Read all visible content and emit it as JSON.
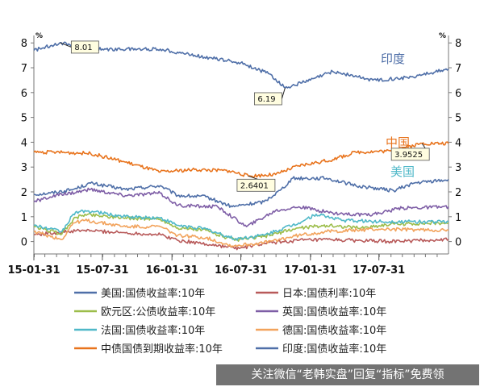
{
  "watermark": {
    "text": "关注微信“老韩实盘”回复“指标”免费领"
  },
  "chart_data": {
    "type": "line",
    "unit_left": "%",
    "unit_right": "%",
    "ylim": [
      -0.5,
      8.3
    ],
    "yticks": [
      0,
      1,
      2,
      3,
      4,
      5,
      6,
      7,
      8
    ],
    "xlim": [
      "2015-01-31",
      "2018-01-31"
    ],
    "xticks": [
      "15-01-31",
      "15-07-31",
      "16-01-31",
      "16-07-31",
      "17-01-31",
      "17-07-31"
    ],
    "xtick_dates": [
      "2015-01-31",
      "2015-07-31",
      "2016-01-31",
      "2016-07-31",
      "2017-01-31",
      "2017-07-31"
    ],
    "grid": false,
    "legend_position": "bottom",
    "series": [
      {
        "name": "美国:国债收益率:10年",
        "color": "#4f6fa8",
        "points": [
          [
            "2015-01-31",
            1.9
          ],
          [
            "2015-03-15",
            1.95
          ],
          [
            "2015-05-15",
            2.1
          ],
          [
            "2015-06-30",
            2.35
          ],
          [
            "2015-09-30",
            2.1
          ],
          [
            "2015-12-31",
            2.25
          ],
          [
            "2016-02-15",
            1.85
          ],
          [
            "2016-04-30",
            1.8
          ],
          [
            "2016-07-08",
            1.4
          ],
          [
            "2016-09-30",
            1.6
          ],
          [
            "2016-11-15",
            2.1
          ],
          [
            "2016-12-15",
            2.55
          ],
          [
            "2017-03-15",
            2.55
          ],
          [
            "2017-05-31",
            2.25
          ],
          [
            "2017-09-08",
            2.05
          ],
          [
            "2017-10-31",
            2.35
          ],
          [
            "2018-01-31",
            2.5
          ]
        ]
      },
      {
        "name": "日本:国债利率:10年",
        "color": "#b85a5a",
        "points": [
          [
            "2015-01-31",
            0.28
          ],
          [
            "2015-06-15",
            0.45
          ],
          [
            "2015-09-30",
            0.35
          ],
          [
            "2015-12-31",
            0.28
          ],
          [
            "2016-02-15",
            0.05
          ],
          [
            "2016-04-30",
            -0.1
          ],
          [
            "2016-07-27",
            -0.28
          ],
          [
            "2016-09-30",
            -0.08
          ],
          [
            "2016-12-31",
            0.05
          ],
          [
            "2017-03-31",
            0.07
          ],
          [
            "2017-08-31",
            0.0
          ],
          [
            "2018-01-31",
            0.08
          ]
        ]
      },
      {
        "name": "欧元区:公债收益率:10年",
        "color": "#9cbd4a",
        "points": [
          [
            "2015-01-31",
            0.6
          ],
          [
            "2015-04-15",
            0.3
          ],
          [
            "2015-05-15",
            0.9
          ],
          [
            "2015-06-15",
            1.1
          ],
          [
            "2015-09-30",
            0.95
          ],
          [
            "2015-12-31",
            0.9
          ],
          [
            "2016-02-15",
            0.55
          ],
          [
            "2016-04-30",
            0.45
          ],
          [
            "2016-07-15",
            0.05
          ],
          [
            "2016-09-30",
            0.2
          ],
          [
            "2016-12-31",
            0.55
          ],
          [
            "2017-03-15",
            0.65
          ],
          [
            "2017-06-15",
            0.55
          ],
          [
            "2017-08-31",
            0.7
          ],
          [
            "2018-01-31",
            0.75
          ]
        ]
      },
      {
        "name": "英国:国债收益率:10年",
        "color": "#7e5ea6",
        "points": [
          [
            "2015-01-31",
            1.6
          ],
          [
            "2015-03-15",
            1.8
          ],
          [
            "2015-06-30",
            2.1
          ],
          [
            "2015-09-30",
            1.85
          ],
          [
            "2015-12-31",
            1.95
          ],
          [
            "2016-02-15",
            1.45
          ],
          [
            "2016-05-31",
            1.4
          ],
          [
            "2016-08-15",
            0.6
          ],
          [
            "2016-10-31",
            1.25
          ],
          [
            "2016-12-31",
            1.4
          ],
          [
            "2017-03-31",
            1.15
          ],
          [
            "2017-06-30",
            1.05
          ],
          [
            "2017-09-30",
            1.35
          ],
          [
            "2018-01-31",
            1.4
          ]
        ]
      },
      {
        "name": "法国:国债收益率:10年",
        "color": "#4fb8c8",
        "points": [
          [
            "2015-01-31",
            0.65
          ],
          [
            "2015-04-15",
            0.4
          ],
          [
            "2015-05-15",
            1.1
          ],
          [
            "2015-06-15",
            1.25
          ],
          [
            "2015-09-30",
            1.0
          ],
          [
            "2015-12-31",
            0.95
          ],
          [
            "2016-02-15",
            0.65
          ],
          [
            "2016-04-30",
            0.5
          ],
          [
            "2016-07-15",
            0.1
          ],
          [
            "2016-09-30",
            0.25
          ],
          [
            "2016-12-31",
            0.75
          ],
          [
            "2017-02-15",
            1.1
          ],
          [
            "2017-04-30",
            0.85
          ],
          [
            "2017-07-31",
            0.8
          ],
          [
            "2018-01-31",
            0.8
          ]
        ]
      },
      {
        "name": "德国:国债收益率:10年",
        "color": "#f2a35c",
        "points": [
          [
            "2015-01-31",
            0.4
          ],
          [
            "2015-04-15",
            0.08
          ],
          [
            "2015-05-15",
            0.75
          ],
          [
            "2015-06-15",
            0.85
          ],
          [
            "2015-09-30",
            0.6
          ],
          [
            "2015-12-31",
            0.6
          ],
          [
            "2016-02-15",
            0.25
          ],
          [
            "2016-04-30",
            0.15
          ],
          [
            "2016-07-08",
            -0.18
          ],
          [
            "2016-09-30",
            -0.05
          ],
          [
            "2016-12-31",
            0.25
          ],
          [
            "2017-03-15",
            0.4
          ],
          [
            "2017-07-31",
            0.5
          ],
          [
            "2018-01-31",
            0.45
          ]
        ]
      },
      {
        "name": "中债国债到期收益率:10年",
        "color": "#e8731c",
        "points": [
          [
            "2015-01-31",
            3.6
          ],
          [
            "2015-03-31",
            3.6
          ],
          [
            "2015-06-30",
            3.55
          ],
          [
            "2015-09-30",
            3.2
          ],
          [
            "2015-12-31",
            2.8
          ],
          [
            "2016-03-31",
            2.9
          ],
          [
            "2016-06-30",
            2.85
          ],
          [
            "2016-08-20",
            2.6401
          ],
          [
            "2016-10-31",
            2.7
          ],
          [
            "2016-12-31",
            3.05
          ],
          [
            "2017-03-31",
            3.3
          ],
          [
            "2017-05-31",
            3.6
          ],
          [
            "2017-08-31",
            3.65
          ],
          [
            "2017-11-22",
            3.9525
          ],
          [
            "2018-01-31",
            3.95
          ]
        ]
      },
      {
        "name": "印度:国债收益率:10年",
        "color": "#4f6fa8",
        "points": [
          [
            "2015-01-31",
            7.7
          ],
          [
            "2015-04-10",
            8.01
          ],
          [
            "2015-07-31",
            7.75
          ],
          [
            "2015-12-31",
            7.75
          ],
          [
            "2016-03-31",
            7.5
          ],
          [
            "2016-07-31",
            7.2
          ],
          [
            "2016-10-15",
            6.75
          ],
          [
            "2016-11-25",
            6.19
          ],
          [
            "2017-01-31",
            6.5
          ],
          [
            "2017-03-31",
            6.85
          ],
          [
            "2017-07-15",
            6.5
          ],
          [
            "2017-10-15",
            6.6
          ],
          [
            "2018-01-31",
            6.95
          ]
        ]
      }
    ],
    "annotations": [
      {
        "text": "8.01",
        "series": "印度:国债收益率:10年",
        "date": "2015-04-10",
        "value": 8.01
      },
      {
        "text": "6.19",
        "series": "印度:国债收益率:10年",
        "date": "2016-11-25",
        "value": 6.19
      },
      {
        "text": "2.6401",
        "series": "中债国债到期收益率:10年",
        "date": "2016-08-20",
        "value": 2.6401
      },
      {
        "text": "3.9525",
        "series": "中债国债到期收益率:10年",
        "date": "2017-11-22",
        "value": 3.9525
      }
    ],
    "inline_labels": [
      {
        "text": "印度",
        "color": "#4f6fa8"
      },
      {
        "text": "中国",
        "color": "#e8731c"
      },
      {
        "text": "美国",
        "color": "#4fb8c8"
      }
    ]
  }
}
